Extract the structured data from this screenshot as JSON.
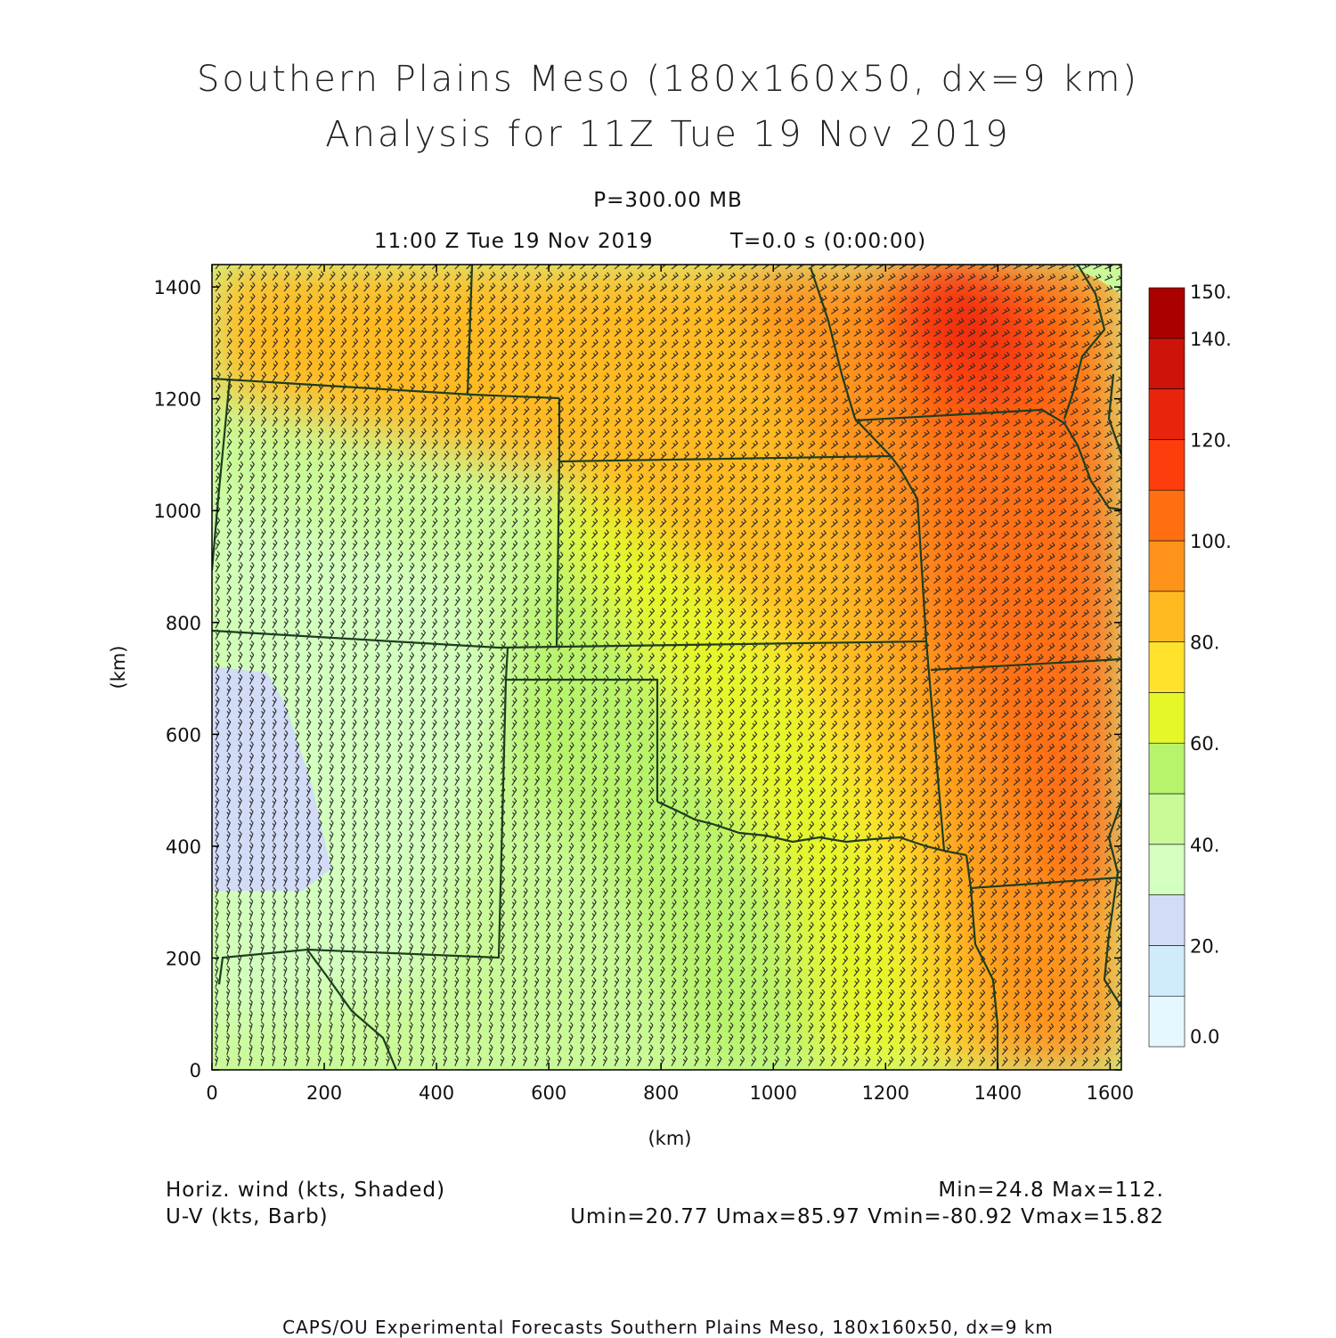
{
  "header": {
    "title_line1": "Southern Plains Meso (180x160x50, dx=9 km)",
    "title_line2": "Analysis for 11Z Tue 19 Nov 2019",
    "level": "P=300.00 MB",
    "valid_time": "11:00 Z Tue 19 Nov 2019",
    "elapsed_time": "T=0.0 s (0:00:00)"
  },
  "map": {
    "x_axis_label": "(km)",
    "y_axis_label": "(km)",
    "x_ticks": [
      "0",
      "200",
      "400",
      "600",
      "800",
      "1000",
      "1200",
      "1400",
      "1600"
    ],
    "y_ticks": [
      "0",
      "200",
      "400",
      "600",
      "800",
      "1000",
      "1200",
      "1400"
    ],
    "x_range_km": [
      0,
      1620
    ],
    "y_range_km": [
      0,
      1440
    ],
    "colors": {
      "boundary": "#1f3d1f",
      "barb": "#2a2a2a"
    }
  },
  "colorbar": {
    "labels": [
      "150.",
      "140.",
      "120.",
      "100.",
      "80.",
      "60.",
      "40.",
      "20.",
      "0.0"
    ],
    "levels": [
      0,
      10,
      20,
      30,
      40,
      50,
      60,
      70,
      80,
      90,
      100,
      110,
      120,
      130,
      140,
      150
    ],
    "colors": [
      "#e6f8ff",
      "#d0ecfb",
      "#d2dcf7",
      "#d3ffbf",
      "#cafa98",
      "#b8f36c",
      "#e5f729",
      "#ffe22b",
      "#ffba22",
      "#ff931a",
      "#ff6f12",
      "#ff3d0c",
      "#e8250b",
      "#cc140a",
      "#aa0000"
    ]
  },
  "footer": {
    "field1": "Horiz. wind (kts, Shaded)",
    "field2": "U-V (kts, Barb)",
    "minmax": "Min=24.8 Max=112.",
    "uv_minmax": "Umin=20.77 Umax=85.97 Vmin=-80.92 Vmax=15.82",
    "credit": "CAPS/OU Experimental Forecasts  Southern Plains Meso, 180x160x50, dx=9 km"
  }
}
